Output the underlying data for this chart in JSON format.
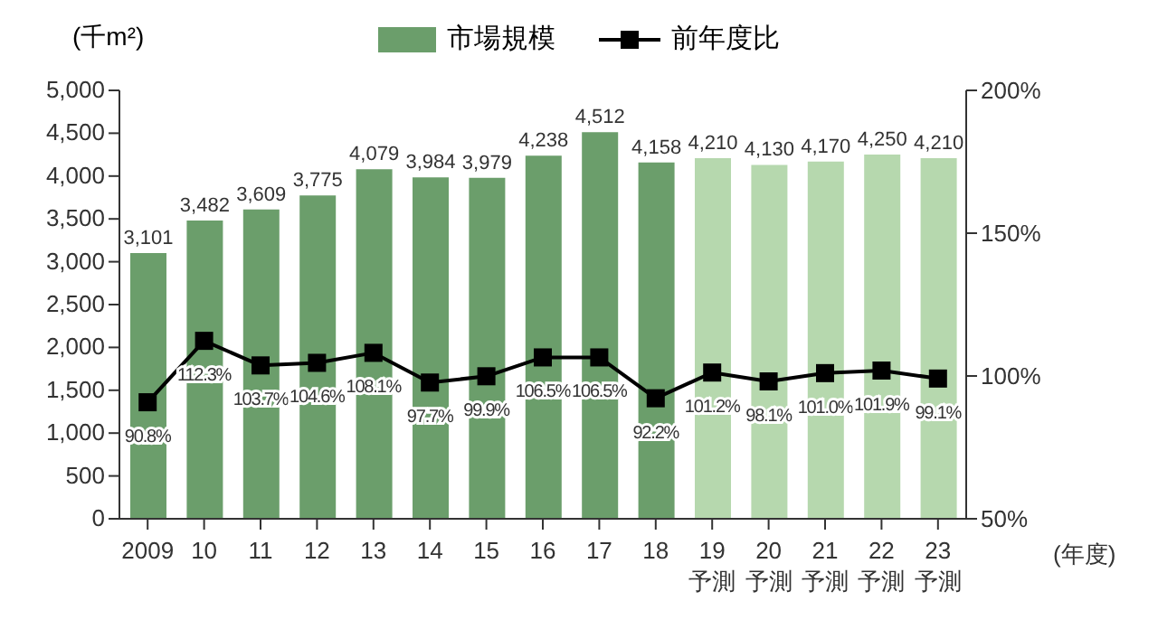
{
  "chart_data": {
    "type": "bar",
    "ylabel": "(千m²)",
    "xlabel": "(年度)",
    "legend": "top",
    "marker": "square",
    "line_style": "solid",
    "grid": false,
    "categories": [
      "2009",
      "10",
      "11",
      "12",
      "13",
      "14",
      "15",
      "16",
      "17",
      "18",
      "19\n予測",
      "20\n予測",
      "21\n予測",
      "22\n予測",
      "23\n予測"
    ],
    "ylim": [
      0,
      5000
    ],
    "yticks": [
      0,
      500,
      {
        "value": 1000,
        "label": "1,000"
      },
      {
        "value": 1500,
        "label": "1,500"
      },
      {
        "value": 2000,
        "label": "2,000"
      },
      {
        "value": 2500,
        "label": "2,500"
      },
      {
        "value": 3000,
        "label": "3,000"
      },
      {
        "value": 3500,
        "label": "3,500"
      },
      {
        "value": 4000,
        "label": "4,000"
      },
      {
        "value": 4500,
        "label": "4,500"
      },
      {
        "value": 5000,
        "label": "5,000"
      }
    ],
    "y2lim": [
      50,
      200
    ],
    "y2ticks": [
      {
        "value": 50,
        "label": "50%"
      },
      {
        "value": 100,
        "label": "100%"
      },
      {
        "value": 150,
        "label": "150%"
      },
      {
        "value": 200,
        "label": "200%"
      }
    ],
    "series": [
      {
        "name": "市場規模",
        "color": "#6b9e6b",
        "colors": [
          "#6b9e6b",
          "#6b9e6b",
          "#6b9e6b",
          "#6b9e6b",
          "#6b9e6b",
          "#6b9e6b",
          "#6b9e6b",
          "#6b9e6b",
          "#6b9e6b",
          "#6b9e6b",
          "#b6d8ae",
          "#b6d8ae",
          "#b6d8ae",
          "#b6d8ae",
          "#b6d8ae"
        ],
        "values": [
          3101,
          3482,
          3609,
          3775,
          4079,
          3984,
          3979,
          4238,
          4512,
          4158,
          4210,
          4130,
          4170,
          4250,
          4210
        ],
        "value_labels": [
          "3,101",
          "3,482",
          "3,609",
          "3,775",
          "4,079",
          "3,984",
          "3,979",
          "4,238",
          "4,512",
          "4,158",
          "4,210",
          "4,130",
          "4,170",
          "4,250",
          "4,210"
        ]
      },
      {
        "name": "前年度比",
        "type": "line",
        "axis": "y2",
        "color": "#000000",
        "values": [
          90.8,
          112.3,
          103.7,
          104.6,
          108.1,
          97.7,
          99.9,
          106.5,
          106.5,
          92.2,
          101.2,
          98.1,
          101.0,
          101.9,
          99.1
        ],
        "value_labels": [
          "90.8%",
          "112.3%",
          "103.7%",
          "104.6%",
          "108.1%",
          "97.7%",
          "99.9%",
          "106.5%",
          "106.5%",
          "92.2%",
          "101.2%",
          "98.1%",
          "101.0%",
          "101.9%",
          "99.1%"
        ]
      }
    ]
  }
}
